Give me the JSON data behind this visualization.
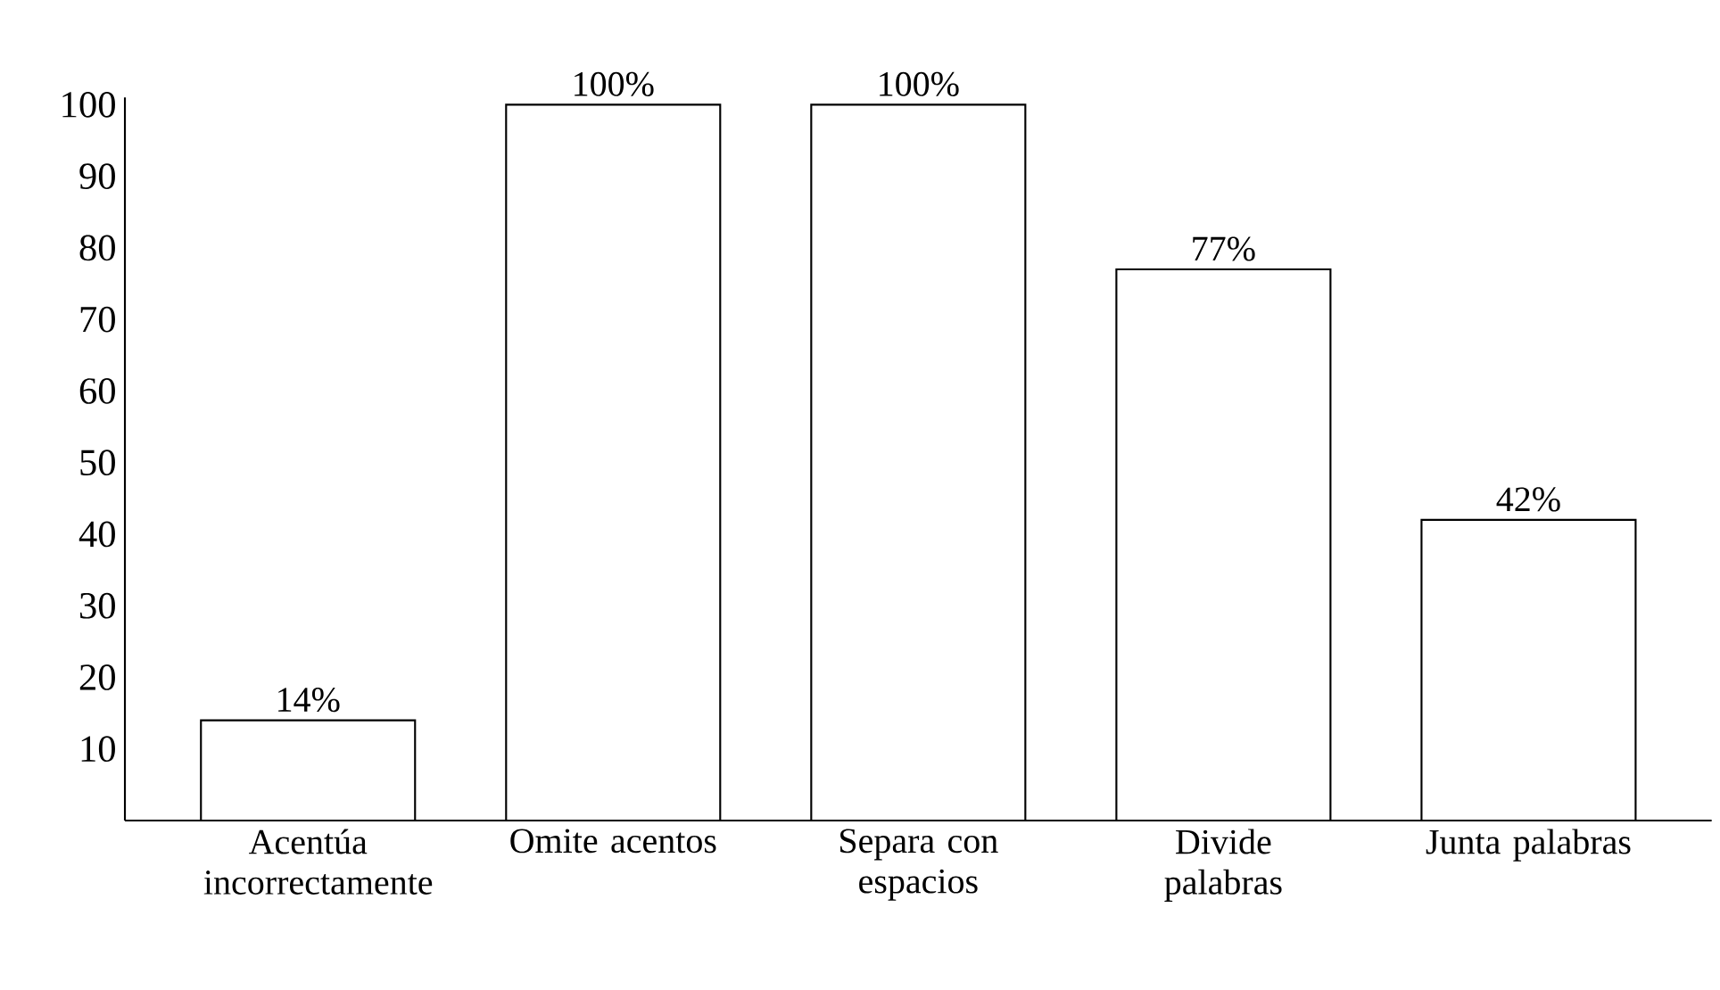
{
  "chart_data": {
    "type": "bar",
    "categories": [
      "Acentúa incorrectamente",
      "Omite acentos",
      "Separa con espacios",
      "Divide palabras",
      "Junta palabras"
    ],
    "values": [
      14,
      100,
      100,
      77,
      42
    ],
    "value_labels": [
      "14%",
      "100%",
      "100%",
      "77%",
      "42%"
    ],
    "color": "#ffffff",
    "ylim": [
      0,
      101
    ],
    "yticks": [
      10,
      20,
      30,
      40,
      50,
      60,
      70,
      80,
      90,
      100
    ],
    "grid": false
  }
}
